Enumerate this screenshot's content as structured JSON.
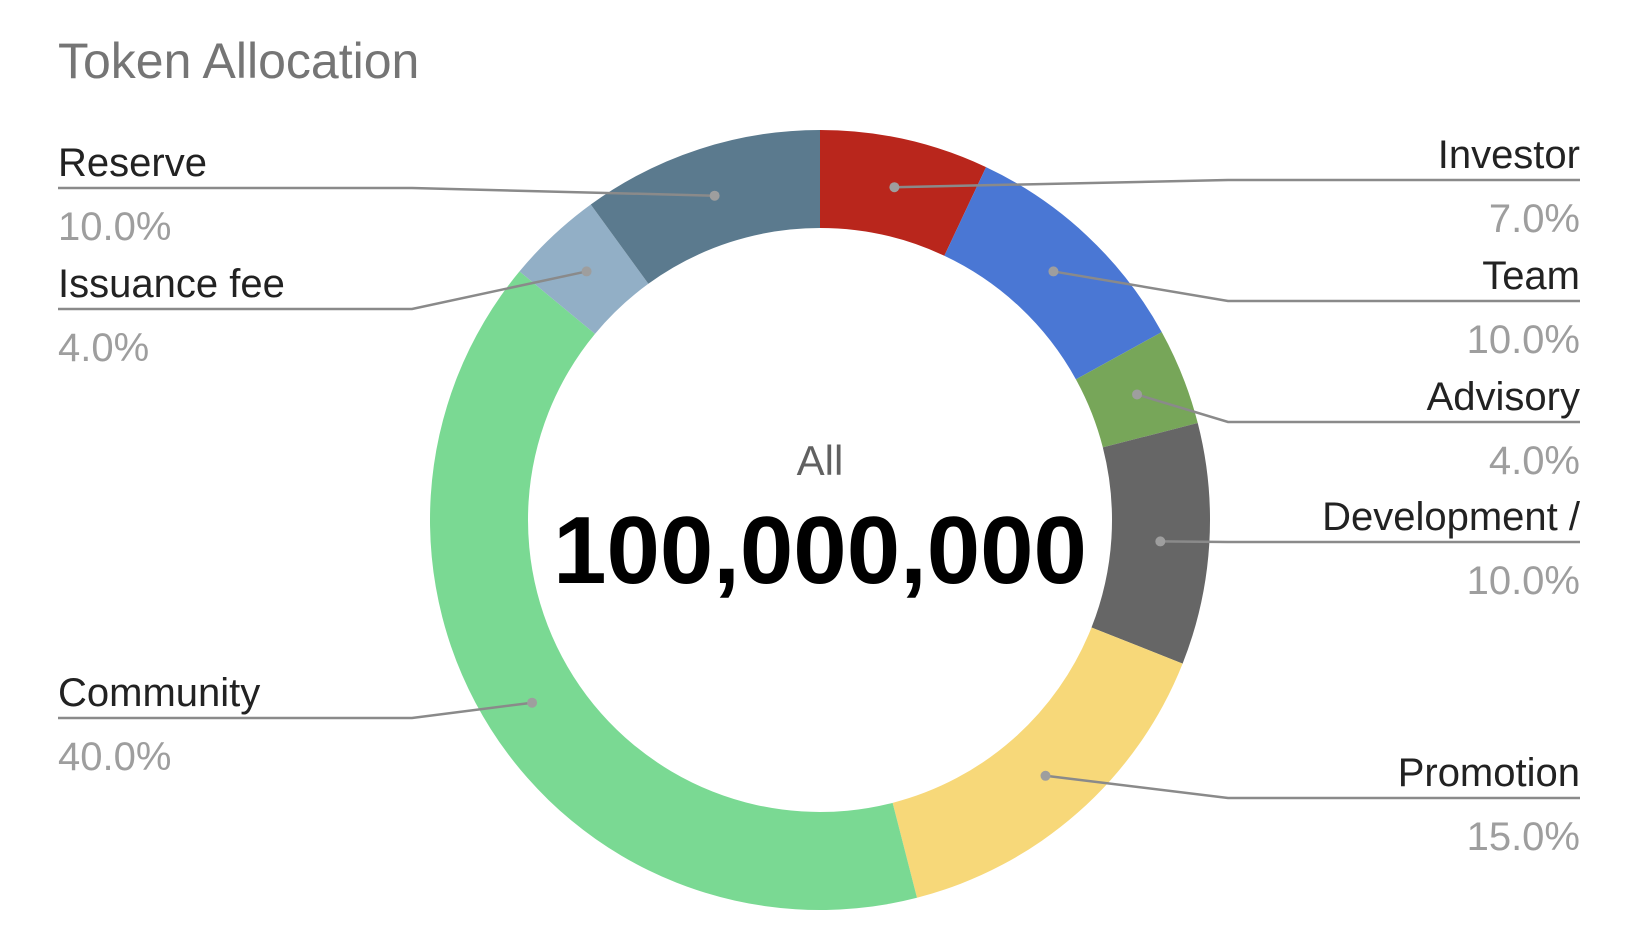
{
  "chart_data": {
    "type": "pie",
    "style": "donut",
    "title": "Token Allocation",
    "center": {
      "caption": "All",
      "value": "100,000,000"
    },
    "slices": [
      {
        "name": "Investor",
        "value": 7.0,
        "label": "7.0%",
        "color": "#b9261c"
      },
      {
        "name": "Team",
        "value": 10.0,
        "label": "10.0%",
        "color": "#4a77d4"
      },
      {
        "name": "Advisory",
        "value": 4.0,
        "label": "4.0%",
        "color": "#77a659"
      },
      {
        "name": "Development /",
        "value": 10.0,
        "label": "10.0%",
        "color": "#666666"
      },
      {
        "name": "Promotion",
        "value": 15.0,
        "label": "15.0%",
        "color": "#f7d879"
      },
      {
        "name": "Community",
        "value": 40.0,
        "label": "40.0%",
        "color": "#7ad993"
      },
      {
        "name": "Issuance fee",
        "value": 4.0,
        "label": "4.0%",
        "color": "#92afc6"
      },
      {
        "name": "Reserve",
        "value": 10.0,
        "label": "10.0%",
        "color": "#5b7a8e"
      }
    ],
    "legend": "none",
    "labels": "outside-with-leader-lines"
  }
}
